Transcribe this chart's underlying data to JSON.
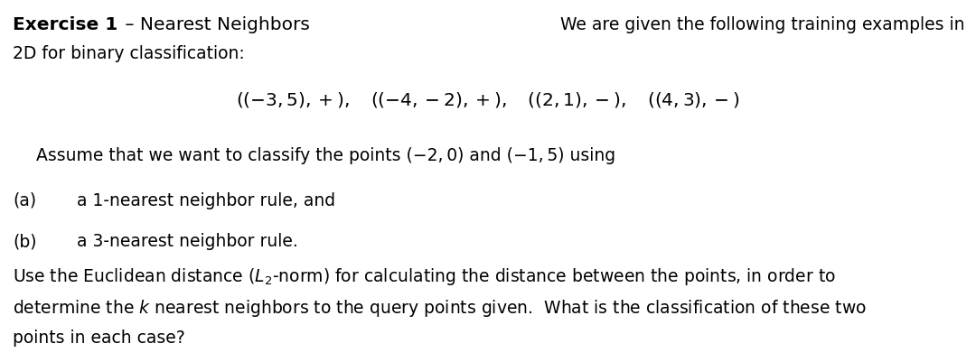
{
  "bg_color": "#ffffff",
  "font_size_title": 14.5,
  "font_size_body": 13.5,
  "font_size_center": 14.5,
  "title_bold": "Exercise 1",
  "title_rest": " – Nearest Neighbors",
  "title_right": "We are given the following training examples in",
  "line2": "2D for binary classification:",
  "item_a_label": "(a)",
  "item_a_text": "a 1-nearest neighbor rule, and",
  "item_b_label": "(b)",
  "item_b_text": "a 3-nearest neighbor rule.",
  "assume_text": "Assume that we want to classify the points (−2, 0) and (−1, 5) using",
  "bottom1": "Use the Euclidean distance ($L_2$-norm) for calculating the distance between the points, in order to",
  "bottom2": "determine the $k$ nearest neighbors to the query points given.  What is the classification of these two",
  "bottom3": "points in each case?"
}
